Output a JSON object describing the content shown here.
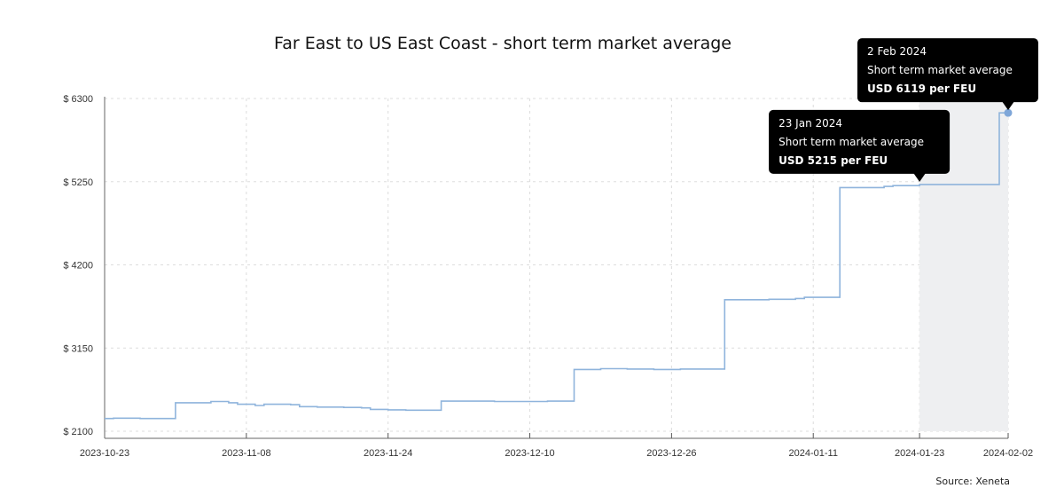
{
  "chart_data": {
    "type": "line",
    "title": "Far East to US East Coast - short term market average",
    "xlabel": "",
    "ylabel": "",
    "source": "Source: Xeneta",
    "ylim": [
      2100,
      6300
    ],
    "yticks": [
      2100,
      3150,
      4200,
      5250,
      6300
    ],
    "ytick_labels": [
      "$ 2100",
      "$ 3150",
      "$ 4200",
      "$ 5250",
      "$ 6300"
    ],
    "xlim": [
      "2023-10-23",
      "2024-02-02"
    ],
    "xticks": [
      "2023-10-23",
      "2023-11-08",
      "2023-11-24",
      "2023-12-10",
      "2023-12-26",
      "2024-01-11",
      "2024-01-23",
      "2024-02-02"
    ],
    "grid": true,
    "step": true,
    "highlight_range": [
      "2024-01-23",
      "2024-02-02"
    ],
    "colors": {
      "line": "#8fb4dc",
      "highlight": "#eeeff1",
      "grid": "#dddddd",
      "tooltip": "#000000"
    },
    "series": [
      {
        "points": [
          [
            "2023-10-23",
            2260
          ],
          [
            "2023-10-24",
            2265
          ],
          [
            "2023-10-27",
            2260
          ],
          [
            "2023-10-30",
            2260
          ],
          [
            "2023-10-31",
            2460
          ],
          [
            "2023-11-03",
            2460
          ],
          [
            "2023-11-04",
            2475
          ],
          [
            "2023-11-06",
            2460
          ],
          [
            "2023-11-07",
            2440
          ],
          [
            "2023-11-09",
            2425
          ],
          [
            "2023-11-10",
            2440
          ],
          [
            "2023-11-13",
            2435
          ],
          [
            "2023-11-14",
            2410
          ],
          [
            "2023-11-16",
            2405
          ],
          [
            "2023-11-19",
            2400
          ],
          [
            "2023-11-21",
            2395
          ],
          [
            "2023-11-22",
            2375
          ],
          [
            "2023-11-24",
            2370
          ],
          [
            "2023-11-26",
            2365
          ],
          [
            "2023-11-29",
            2365
          ],
          [
            "2023-11-30",
            2480
          ],
          [
            "2023-12-03",
            2480
          ],
          [
            "2023-12-06",
            2475
          ],
          [
            "2023-12-09",
            2475
          ],
          [
            "2023-12-12",
            2480
          ],
          [
            "2023-12-14",
            2480
          ],
          [
            "2023-12-15",
            2880
          ],
          [
            "2023-12-18",
            2890
          ],
          [
            "2023-12-21",
            2885
          ],
          [
            "2023-12-24",
            2880
          ],
          [
            "2023-12-27",
            2885
          ],
          [
            "2023-12-31",
            2885
          ],
          [
            "2024-01-01",
            3760
          ],
          [
            "2024-01-06",
            3765
          ],
          [
            "2024-01-09",
            3775
          ],
          [
            "2024-01-10",
            3790
          ],
          [
            "2024-01-13",
            3790
          ],
          [
            "2024-01-14",
            5175
          ],
          [
            "2024-01-19",
            5190
          ],
          [
            "2024-01-20",
            5200
          ],
          [
            "2024-01-23",
            5215
          ],
          [
            "2024-02-01",
            5215
          ],
          [
            "2024-02-01",
            6119
          ],
          [
            "2024-02-02",
            6119
          ]
        ]
      }
    ],
    "tooltips": [
      {
        "date": "2 Feb 2024",
        "label": "Short term market average",
        "value": "USD 6119 per FEU",
        "x": "2024-02-02",
        "y": 6119
      },
      {
        "date": "23 Jan 2024",
        "label": "Short term market average",
        "value": "USD 5215 per FEU",
        "x": "2024-01-23",
        "y": 5215
      }
    ]
  }
}
